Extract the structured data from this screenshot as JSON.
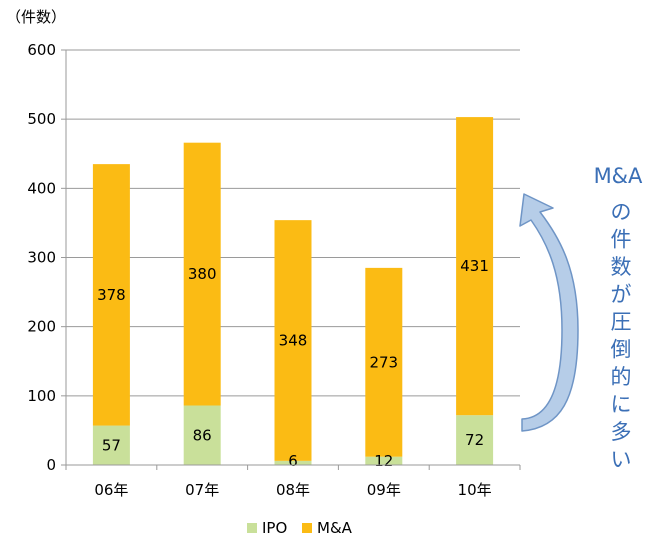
{
  "chart_data": {
    "type": "bar",
    "stacked": true,
    "title": "",
    "ylabel": "（件数）",
    "xlabel": "",
    "categories": [
      "06年",
      "07年",
      "08年",
      "09年",
      "10年"
    ],
    "series": [
      {
        "name": "IPO",
        "values": [
          57,
          86,
          6,
          12,
          72
        ],
        "color": "#c9e09a"
      },
      {
        "name": "M&A",
        "values": [
          378,
          380,
          348,
          273,
          431
        ],
        "color": "#fbbb14"
      }
    ],
    "ylim": [
      0,
      600
    ],
    "yticks": [
      0,
      100,
      200,
      300,
      400,
      500,
      600
    ],
    "yticks_labels": [
      "0",
      "100",
      "200",
      "300",
      "400",
      "500",
      "600"
    ],
    "grid": true,
    "legend_position": "bottom"
  },
  "annotation": {
    "line1": "M&A",
    "vertical_text": "の件数が圧倒的に多い",
    "text_color": "#3b6fb6",
    "arrow_color": "#a9c4e4",
    "arrow_edge_color": "#6f95c6"
  },
  "colors": {
    "axis": "#9a9a9a",
    "grid": "#9a9a9a"
  }
}
